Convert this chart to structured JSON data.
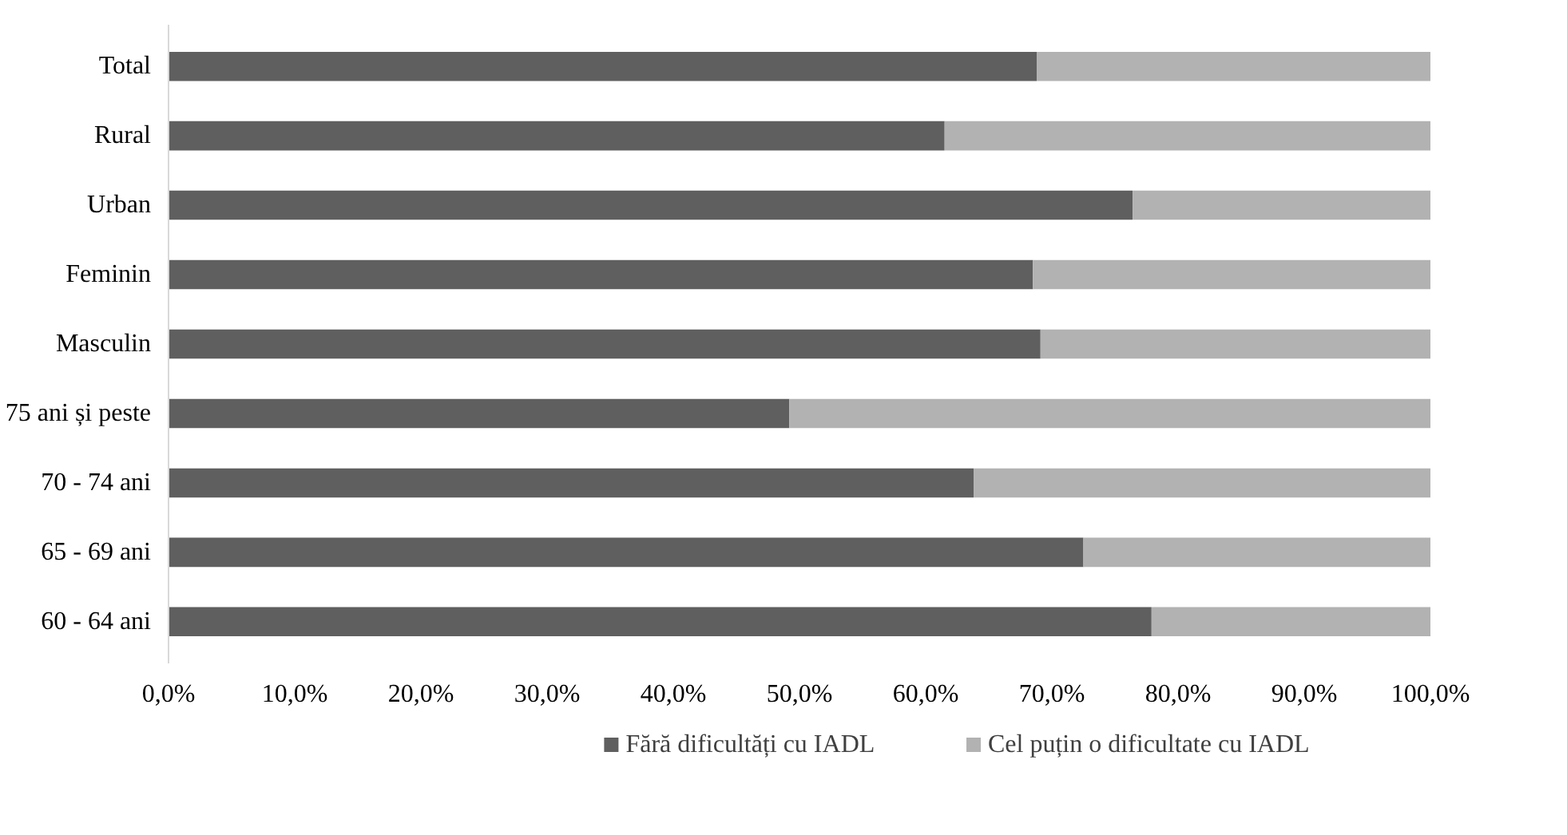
{
  "chart_data": {
    "type": "bar",
    "orientation": "horizontal",
    "stacked": true,
    "categories": [
      "Total",
      "Rural",
      "Urban",
      "Feminin",
      "Masculin",
      "75 ani și peste",
      "70 - 74 ani",
      "65 - 69 ani",
      "60 - 64 ani"
    ],
    "series": [
      {
        "name": "Fără dificultăți cu IADL",
        "color": "#5f5f5f",
        "values": [
          68.8,
          61.5,
          76.4,
          68.5,
          69.1,
          49.2,
          63.8,
          72.5,
          77.9
        ]
      },
      {
        "name": "Cel puțin o dificultate cu IADL",
        "color": "#b2b2b2",
        "values": [
          31.2,
          38.5,
          23.6,
          31.5,
          30.9,
          50.8,
          36.2,
          27.5,
          22.1
        ]
      }
    ],
    "xlim": [
      0,
      100
    ],
    "xticks": [
      {
        "value": 0,
        "label": "0,0%"
      },
      {
        "value": 10,
        "label": "10,0%"
      },
      {
        "value": 20,
        "label": "20,0%"
      },
      {
        "value": 30,
        "label": "30,0%"
      },
      {
        "value": 40,
        "label": "40,0%"
      },
      {
        "value": 50,
        "label": "50,0%"
      },
      {
        "value": 60,
        "label": "60,0%"
      },
      {
        "value": 70,
        "label": "70,0%"
      },
      {
        "value": 80,
        "label": "80,0%"
      },
      {
        "value": 90,
        "label": "90,0%"
      },
      {
        "value": 100,
        "label": "100,0%"
      }
    ],
    "grid": false,
    "legend": "bottom"
  }
}
